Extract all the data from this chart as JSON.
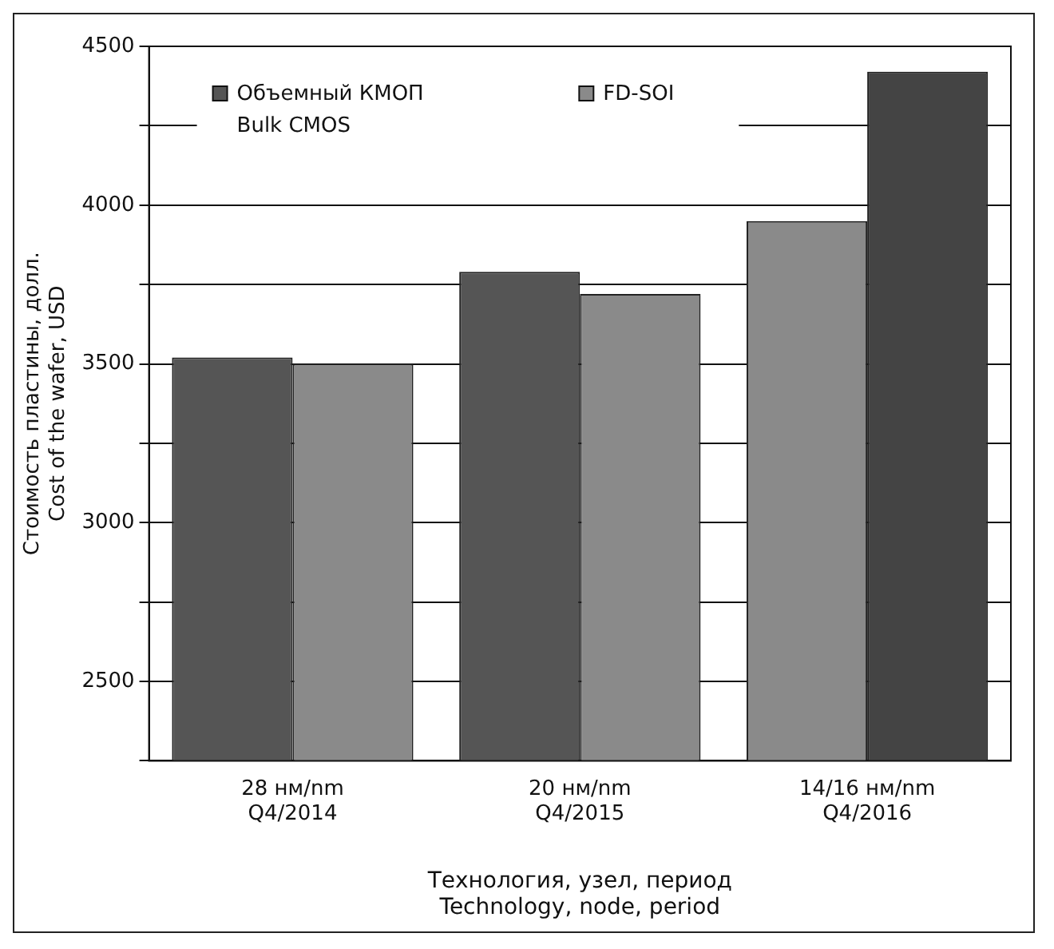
{
  "chart_data": {
    "type": "bar",
    "xlabel": "Технология, узел, период\nTechnology, node, period",
    "ylabel": "Стоимость пластины, долл.\nCost of the wafer, USD",
    "categories": [
      "28 нм/nm\nQ4/2014",
      "20 нм/nm\nQ4/2015",
      "14/16 нм/nm\nQ4/2016"
    ],
    "series": [
      {
        "name": "Объемный КМОП\nBulk CMOS",
        "color": "#555555",
        "colors": [
          "#555555",
          "#555555",
          "#8a8a8a"
        ],
        "values": [
          3520,
          3790,
          3950
        ]
      },
      {
        "name": "FD-SOI",
        "color": "#8a8a8a",
        "colors": [
          "#8a8a8a",
          "#8a8a8a",
          "#444444"
        ],
        "values": [
          3500,
          3720,
          4420
        ]
      }
    ],
    "ylim": [
      2250,
      4500
    ],
    "yticks": [
      {
        "value": 2250,
        "label": null
      },
      2500,
      {
        "value": 2750,
        "label": null
      },
      3000,
      {
        "value": 3250,
        "label": null
      },
      3500,
      {
        "value": 3750,
        "label": null
      },
      4000,
      {
        "value": 4250,
        "label": null
      },
      4500
    ],
    "grid": "y",
    "legend": "top"
  }
}
